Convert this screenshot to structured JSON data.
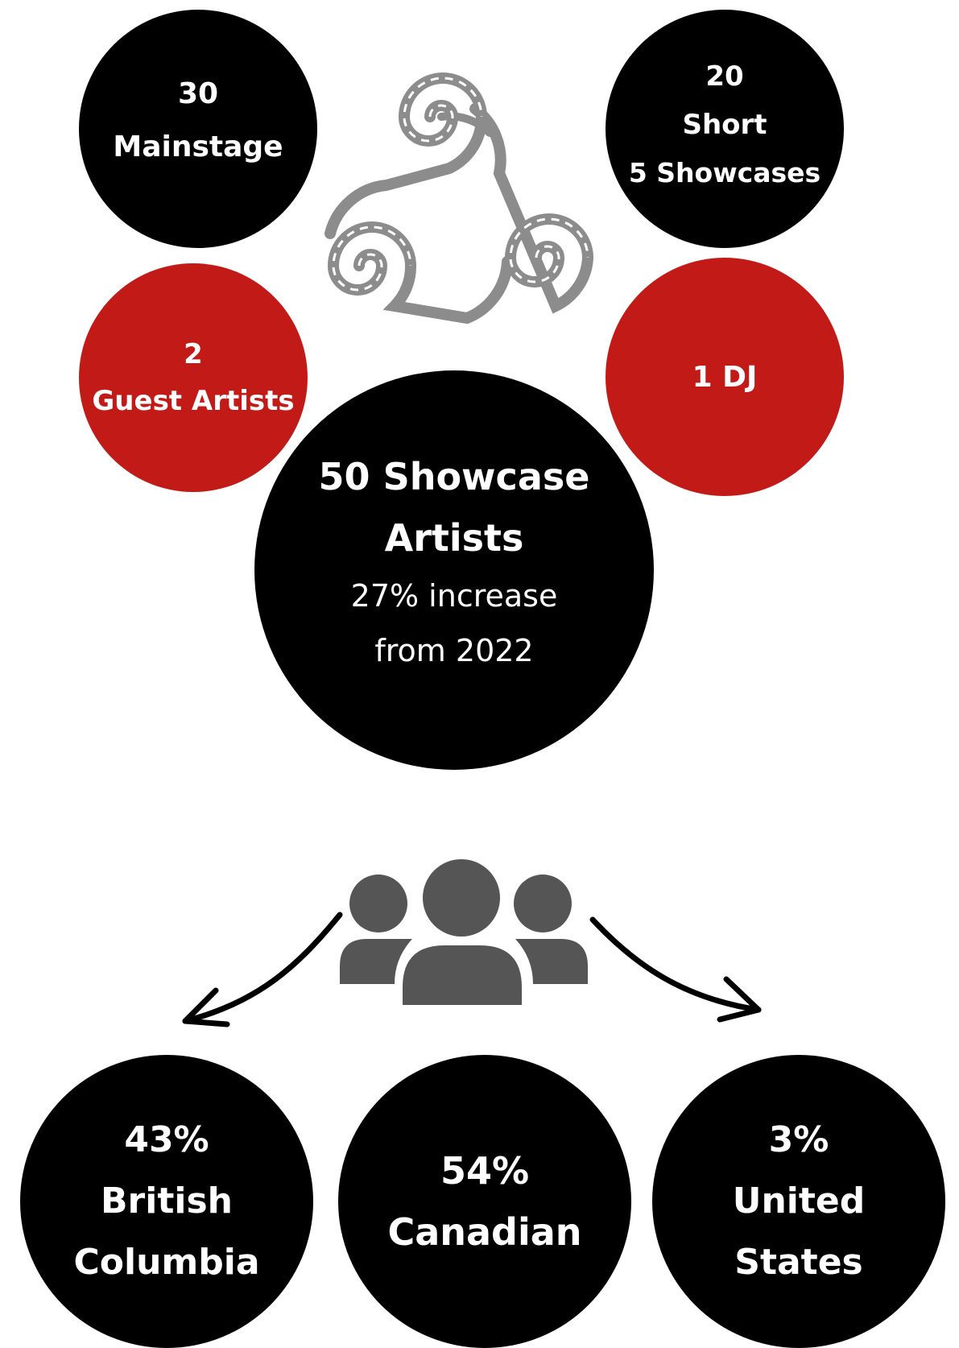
{
  "top_circles": {
    "mainstage": {
      "line1": "30",
      "line2": "Mainstage"
    },
    "short": {
      "line1": "20",
      "line2": "Short",
      "line3": "5 Showcases"
    },
    "guest": {
      "line1": "2",
      "line2": "Guest Artists"
    },
    "dj": {
      "line1": "1 DJ"
    }
  },
  "showcase": {
    "line1": "50 Showcase",
    "line2": "Artists",
    "line3": "27% increase",
    "line4": "from 2022"
  },
  "origins": {
    "bc": {
      "percent": "43%",
      "line2": "British",
      "line3": "Columbia"
    },
    "canadian": {
      "percent": "54%",
      "line2": "Canadian"
    },
    "us": {
      "percent": "3%",
      "line2": "United",
      "line3": "States"
    }
  },
  "icons": [
    "triskele-spiral-icon",
    "people-group-icon",
    "arrow-left-down-icon",
    "arrow-right-down-icon"
  ],
  "colors": {
    "black": "#000000",
    "red": "#c21b17",
    "gray": "#555555",
    "spiral": "#8c8c8c"
  }
}
